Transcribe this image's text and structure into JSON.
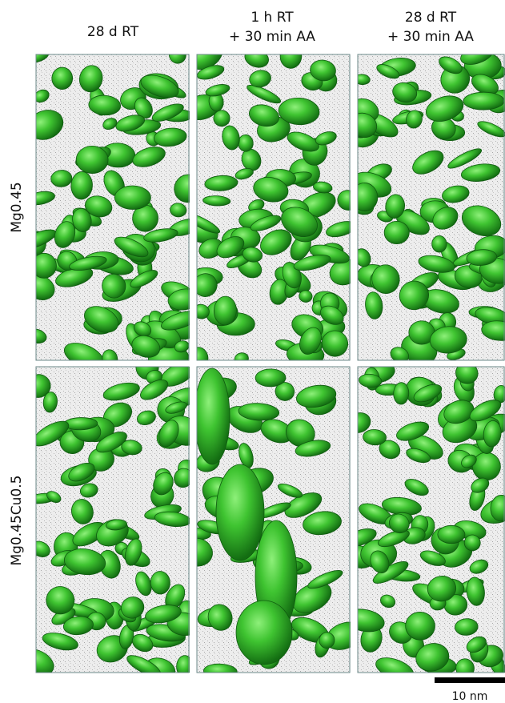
{
  "columns": [
    {
      "lines": [
        "28 d RT"
      ]
    },
    {
      "lines": [
        "1 h RT",
        "+ 30 min AA"
      ]
    },
    {
      "lines": [
        "28 d RT",
        "+ 30 min AA"
      ]
    }
  ],
  "rows": [
    "Mg0.45",
    "Mg0.45Cu0.5"
  ],
  "scale_bar": {
    "label": "10 nm"
  }
}
